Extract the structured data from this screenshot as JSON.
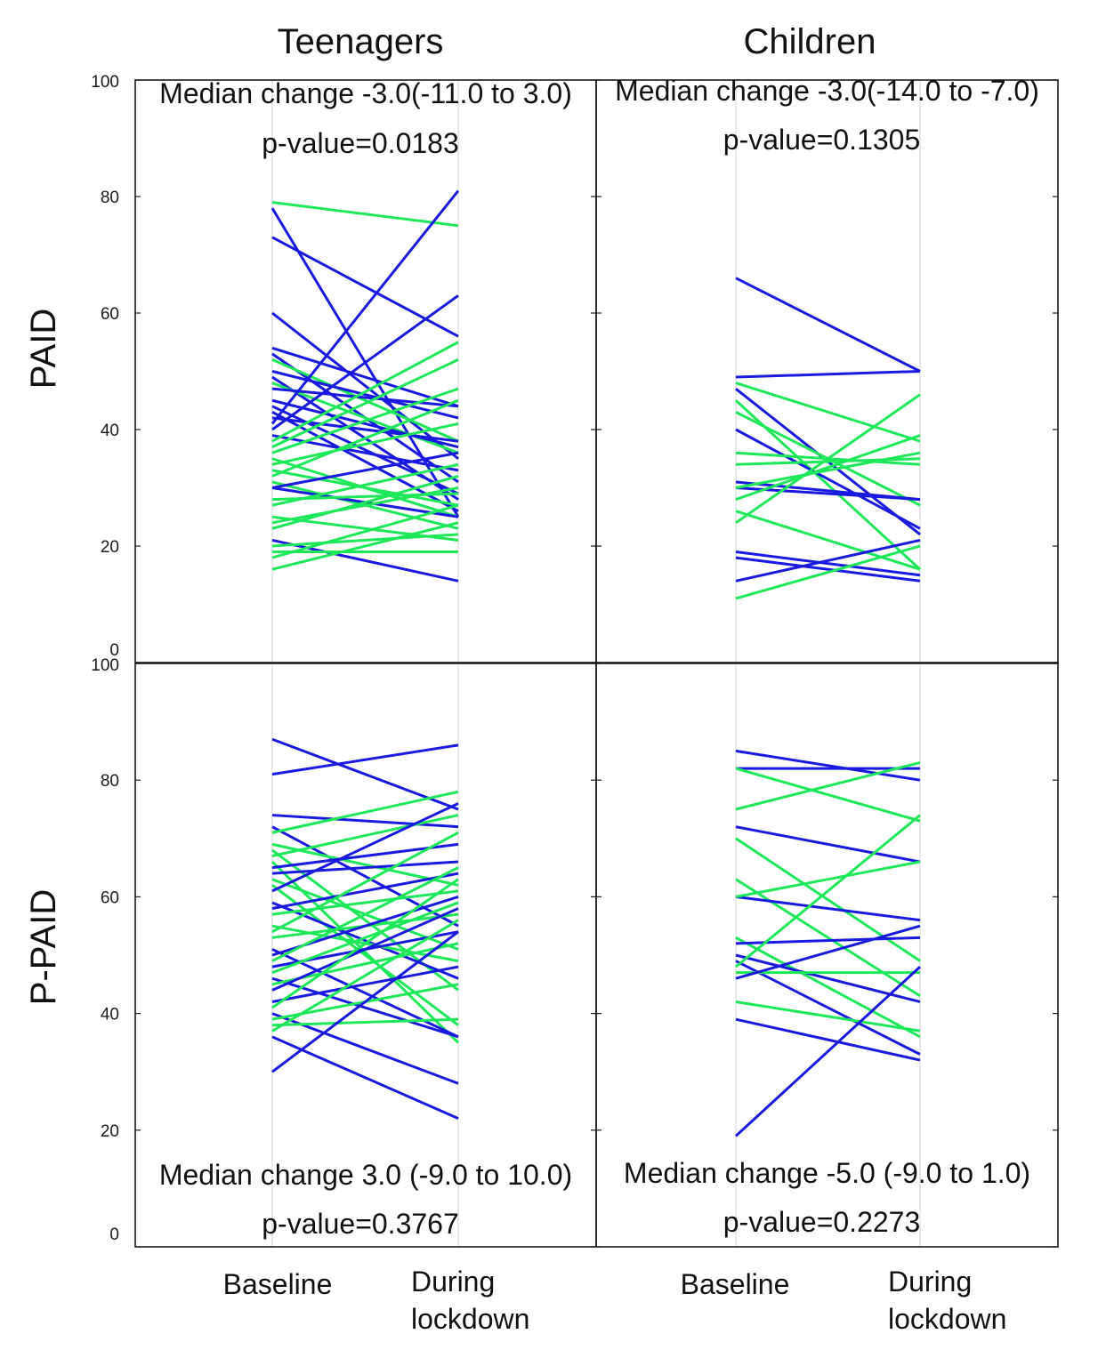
{
  "chart_data": [
    {
      "type": "line",
      "title": "Teenagers",
      "ylabel": "PAID",
      "categories": [
        "Baseline",
        "During lockdown"
      ],
      "ylim": [
        0,
        100
      ],
      "yticks": [
        0,
        20,
        40,
        60,
        80,
        100
      ],
      "grid": false,
      "colors": {
        "increase": "#1ee85a",
        "decrease": "#1a1adf"
      },
      "annotation": [
        "Median change -3.0(-11.0 to 3.0)",
        "p-value=0.0183"
      ],
      "series": [
        {
          "values": [
            79,
            75
          ],
          "color": "#1ee85a"
        },
        {
          "values": [
            78,
            25
          ],
          "color": "#1a1adf"
        },
        {
          "values": [
            73,
            56
          ],
          "color": "#1a1adf"
        },
        {
          "values": [
            60,
            35
          ],
          "color": "#1a1adf"
        },
        {
          "values": [
            54,
            44
          ],
          "color": "#1a1adf"
        },
        {
          "values": [
            53,
            31
          ],
          "color": "#1a1adf"
        },
        {
          "values": [
            52,
            38
          ],
          "color": "#1ee85a"
        },
        {
          "values": [
            50,
            42
          ],
          "color": "#1a1adf"
        },
        {
          "values": [
            49,
            28
          ],
          "color": "#1a1adf"
        },
        {
          "values": [
            48,
            36
          ],
          "color": "#1ee85a"
        },
        {
          "values": [
            47,
            44
          ],
          "color": "#1a1adf"
        },
        {
          "values": [
            45,
            37
          ],
          "color": "#1a1adf"
        },
        {
          "values": [
            44,
            29
          ],
          "color": "#1a1adf"
        },
        {
          "values": [
            43,
            26
          ],
          "color": "#1a1adf"
        },
        {
          "values": [
            42,
            38
          ],
          "color": "#1a1adf"
        },
        {
          "values": [
            41,
            81
          ],
          "color": "#1a1adf"
        },
        {
          "values": [
            40,
            63
          ],
          "color": "#1a1adf"
        },
        {
          "values": [
            39,
            33
          ],
          "color": "#1a1adf"
        },
        {
          "values": [
            38,
            55
          ],
          "color": "#1ee85a"
        },
        {
          "values": [
            37,
            52
          ],
          "color": "#1ee85a"
        },
        {
          "values": [
            36,
            47
          ],
          "color": "#1ee85a"
        },
        {
          "values": [
            35,
            25
          ],
          "color": "#1ee85a"
        },
        {
          "values": [
            34,
            41
          ],
          "color": "#1ee85a"
        },
        {
          "values": [
            33,
            27
          ],
          "color": "#1ee85a"
        },
        {
          "values": [
            32,
            45
          ],
          "color": "#1ee85a"
        },
        {
          "values": [
            31,
            23
          ],
          "color": "#1ee85a"
        },
        {
          "values": [
            30,
            36
          ],
          "color": "#1a1adf"
        },
        {
          "values": [
            30,
            25
          ],
          "color": "#1a1adf"
        },
        {
          "values": [
            28,
            29
          ],
          "color": "#1ee85a"
        },
        {
          "values": [
            27,
            34
          ],
          "color": "#1ee85a"
        },
        {
          "values": [
            25,
            21
          ],
          "color": "#1ee85a"
        },
        {
          "values": [
            24,
            30
          ],
          "color": "#1ee85a"
        },
        {
          "values": [
            23,
            32
          ],
          "color": "#1ee85a"
        },
        {
          "values": [
            21,
            14
          ],
          "color": "#1a1adf"
        },
        {
          "values": [
            20,
            22
          ],
          "color": "#1ee85a"
        },
        {
          "values": [
            18,
            27
          ],
          "color": "#1ee85a"
        },
        {
          "values": [
            16,
            24
          ],
          "color": "#1ee85a"
        },
        {
          "values": [
            19,
            19
          ],
          "color": "#1ee85a"
        }
      ]
    },
    {
      "type": "line",
      "title": "Children",
      "ylabel": "",
      "categories": [
        "Baseline",
        "During lockdown"
      ],
      "ylim": [
        0,
        100
      ],
      "yticks": [
        0,
        20,
        40,
        60,
        80,
        100
      ],
      "grid": false,
      "colors": {
        "increase": "#1ee85a",
        "decrease": "#1a1adf"
      },
      "annotation": [
        "Median change -3.0(-14.0 to -7.0)",
        "p-value=0.1305"
      ],
      "series": [
        {
          "values": [
            66,
            50
          ],
          "color": "#1a1adf"
        },
        {
          "values": [
            49,
            50
          ],
          "color": "#1a1adf"
        },
        {
          "values": [
            48,
            38
          ],
          "color": "#1ee85a"
        },
        {
          "values": [
            47,
            22
          ],
          "color": "#1a1adf"
        },
        {
          "values": [
            45,
            16
          ],
          "color": "#1ee85a"
        },
        {
          "values": [
            43,
            27
          ],
          "color": "#1ee85a"
        },
        {
          "values": [
            40,
            23
          ],
          "color": "#1a1adf"
        },
        {
          "values": [
            36,
            34
          ],
          "color": "#1ee85a"
        },
        {
          "values": [
            34,
            35
          ],
          "color": "#1ee85a"
        },
        {
          "values": [
            31,
            28
          ],
          "color": "#1a1adf"
        },
        {
          "values": [
            30,
            28
          ],
          "color": "#1a1adf"
        },
        {
          "values": [
            28,
            39
          ],
          "color": "#1ee85a"
        },
        {
          "values": [
            26,
            16
          ],
          "color": "#1ee85a"
        },
        {
          "values": [
            24,
            46
          ],
          "color": "#1ee85a"
        },
        {
          "values": [
            19,
            15
          ],
          "color": "#1a1adf"
        },
        {
          "values": [
            18,
            14
          ],
          "color": "#1a1adf"
        },
        {
          "values": [
            14,
            21
          ],
          "color": "#1a1adf"
        },
        {
          "values": [
            11,
            20
          ],
          "color": "#1ee85a"
        },
        {
          "values": [
            30,
            36
          ],
          "color": "#1ee85a"
        }
      ]
    },
    {
      "type": "line",
      "title": "",
      "ylabel": "P-PAID",
      "categories": [
        "Baseline",
        "During lockdown"
      ],
      "ylim": [
        0,
        100
      ],
      "yticks": [
        0,
        20,
        40,
        60,
        80,
        100
      ],
      "grid": false,
      "colors": {
        "increase": "#1ee85a",
        "decrease": "#1a1adf"
      },
      "annotation": [
        "Median change 3.0 (-9.0 to 10.0)",
        "p-value=0.3767"
      ],
      "series": [
        {
          "values": [
            87,
            75
          ],
          "color": "#1a1adf"
        },
        {
          "values": [
            81,
            86
          ],
          "color": "#1a1adf"
        },
        {
          "values": [
            74,
            72
          ],
          "color": "#1a1adf"
        },
        {
          "values": [
            72,
            55
          ],
          "color": "#1a1adf"
        },
        {
          "values": [
            71,
            78
          ],
          "color": "#1ee85a"
        },
        {
          "values": [
            69,
            62
          ],
          "color": "#1ee85a"
        },
        {
          "values": [
            68,
            44
          ],
          "color": "#1ee85a"
        },
        {
          "values": [
            67,
            74
          ],
          "color": "#1ee85a"
        },
        {
          "values": [
            66,
            35
          ],
          "color": "#1ee85a"
        },
        {
          "values": [
            65,
            69
          ],
          "color": "#1a1adf"
        },
        {
          "values": [
            64,
            66
          ],
          "color": "#1a1adf"
        },
        {
          "values": [
            63,
            51
          ],
          "color": "#1ee85a"
        },
        {
          "values": [
            62,
            38
          ],
          "color": "#1ee85a"
        },
        {
          "values": [
            61,
            76
          ],
          "color": "#1a1adf"
        },
        {
          "values": [
            59,
            46
          ],
          "color": "#1a1adf"
        },
        {
          "values": [
            58,
            64
          ],
          "color": "#1a1adf"
        },
        {
          "values": [
            57,
            61
          ],
          "color": "#1ee85a"
        },
        {
          "values": [
            55,
            49
          ],
          "color": "#1ee85a"
        },
        {
          "values": [
            54,
            71
          ],
          "color": "#1ee85a"
        },
        {
          "values": [
            53,
            57
          ],
          "color": "#1ee85a"
        },
        {
          "values": [
            51,
            36
          ],
          "color": "#1a1adf"
        },
        {
          "values": [
            50,
            60
          ],
          "color": "#1a1adf"
        },
        {
          "values": [
            49,
            65
          ],
          "color": "#1ee85a"
        },
        {
          "values": [
            48,
            54
          ],
          "color": "#1a1adf"
        },
        {
          "values": [
            47,
            59
          ],
          "color": "#1ee85a"
        },
        {
          "values": [
            46,
            36
          ],
          "color": "#1a1adf"
        },
        {
          "values": [
            45,
            52
          ],
          "color": "#1ee85a"
        },
        {
          "values": [
            44,
            58
          ],
          "color": "#1a1adf"
        },
        {
          "values": [
            42,
            48
          ],
          "color": "#1a1adf"
        },
        {
          "values": [
            41,
            63
          ],
          "color": "#1ee85a"
        },
        {
          "values": [
            40,
            28
          ],
          "color": "#1a1adf"
        },
        {
          "values": [
            39,
            45
          ],
          "color": "#1ee85a"
        },
        {
          "values": [
            38,
            39
          ],
          "color": "#1ee85a"
        },
        {
          "values": [
            37,
            56
          ],
          "color": "#1ee85a"
        },
        {
          "values": [
            36,
            22
          ],
          "color": "#1a1adf"
        },
        {
          "values": [
            30,
            54
          ],
          "color": "#1a1adf"
        }
      ]
    },
    {
      "type": "line",
      "title": "",
      "ylabel": "",
      "categories": [
        "Baseline",
        "During lockdown"
      ],
      "ylim": [
        0,
        100
      ],
      "yticks": [
        0,
        20,
        40,
        60,
        80,
        100
      ],
      "grid": false,
      "colors": {
        "increase": "#1ee85a",
        "decrease": "#1a1adf"
      },
      "annotation": [
        "Median change -5.0 (-9.0 to 1.0)",
        "p-value=0.2273"
      ],
      "series": [
        {
          "values": [
            85,
            80
          ],
          "color": "#1a1adf"
        },
        {
          "values": [
            82,
            82
          ],
          "color": "#1a1adf"
        },
        {
          "values": [
            82,
            73
          ],
          "color": "#1ee85a"
        },
        {
          "values": [
            75,
            83
          ],
          "color": "#1ee85a"
        },
        {
          "values": [
            72,
            66
          ],
          "color": "#1a1adf"
        },
        {
          "values": [
            70,
            49
          ],
          "color": "#1ee85a"
        },
        {
          "values": [
            63,
            43
          ],
          "color": "#1ee85a"
        },
        {
          "values": [
            60,
            56
          ],
          "color": "#1a1adf"
        },
        {
          "values": [
            60,
            66
          ],
          "color": "#1ee85a"
        },
        {
          "values": [
            53,
            36
          ],
          "color": "#1ee85a"
        },
        {
          "values": [
            52,
            53
          ],
          "color": "#1a1adf"
        },
        {
          "values": [
            50,
            42
          ],
          "color": "#1a1adf"
        },
        {
          "values": [
            49,
            33
          ],
          "color": "#1a1adf"
        },
        {
          "values": [
            48,
            74
          ],
          "color": "#1ee85a"
        },
        {
          "values": [
            47,
            47
          ],
          "color": "#1ee85a"
        },
        {
          "values": [
            46,
            55
          ],
          "color": "#1a1adf"
        },
        {
          "values": [
            42,
            37
          ],
          "color": "#1ee85a"
        },
        {
          "values": [
            39,
            32
          ],
          "color": "#1a1adf"
        },
        {
          "values": [
            19,
            48
          ],
          "color": "#1a1adf"
        }
      ]
    }
  ]
}
